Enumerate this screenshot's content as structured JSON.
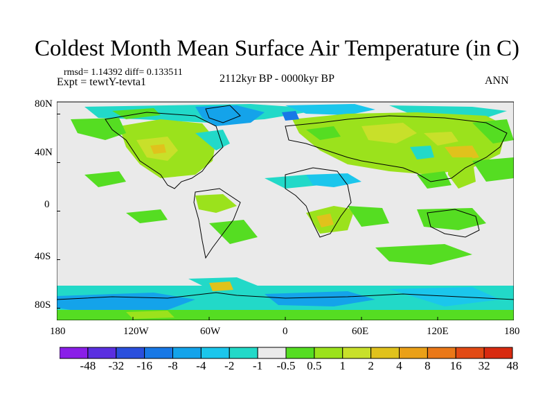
{
  "title": "Coldest Month Mean Surface Air Temperature (in C)",
  "stats": {
    "rmsd_label": "rmsd= 1.14392 diff= 0.133511"
  },
  "experiment_label": "Expt = tewtY-tevta1",
  "period_label": "2112kyr BP - 0000kyr BP",
  "season_label": "ANN",
  "map": {
    "y_ticks": [
      {
        "label": "80N",
        "lat": 80
      },
      {
        "label": "40N",
        "lat": 40
      },
      {
        "label": "0",
        "lat": 0
      },
      {
        "label": "40S",
        "lat": -40
      },
      {
        "label": "80S",
        "lat": -80
      }
    ],
    "x_ticks": [
      {
        "label": "180",
        "lon": -180
      },
      {
        "label": "120W",
        "lon": -120
      },
      {
        "label": "60W",
        "lon": -60
      },
      {
        "label": "0",
        "lon": 0
      },
      {
        "label": "60E",
        "lon": 60
      },
      {
        "label": "120E",
        "lon": 120
      },
      {
        "label": "180",
        "lon": 180
      }
    ],
    "lat_range": [
      -90,
      90
    ],
    "lon_range": [
      -180,
      180
    ]
  },
  "colorbar": {
    "colors": [
      "#8a1ee8",
      "#5a2fe0",
      "#2a4fdd",
      "#1878e6",
      "#14a3ea",
      "#1bc6ec",
      "#22d9c8",
      "#eaeaea",
      "#55dd22",
      "#9be21c",
      "#c8e02a",
      "#e0c21c",
      "#eaa018",
      "#ea7818",
      "#e24a14",
      "#d82a10"
    ],
    "labels": [
      "-48",
      "-32",
      "-16",
      "-8",
      "-4",
      "-2",
      "-1",
      "-0.5",
      "0.5",
      "1",
      "2",
      "4",
      "8",
      "16",
      "32",
      "48"
    ]
  }
}
